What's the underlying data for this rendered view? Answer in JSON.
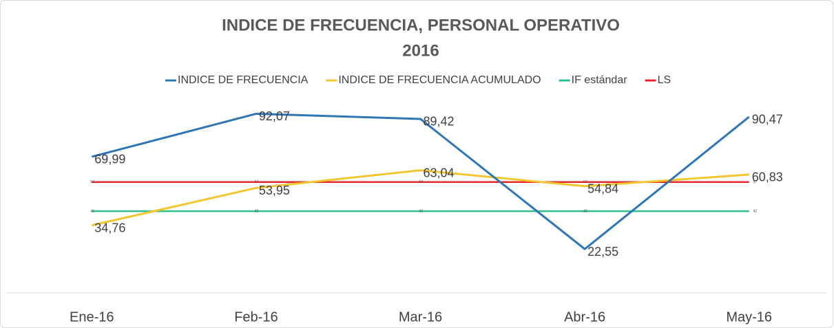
{
  "chart_data": {
    "type": "line",
    "title": "INDICE DE FRECUENCIA, PERSONAL OPERATIVO",
    "subtitle": "2016",
    "categories": [
      "Ene-16",
      "Feb-16",
      "Mar-16",
      "Abr-16",
      "May-16"
    ],
    "ylim": [
      0,
      100
    ],
    "legend": "top",
    "series": [
      {
        "name": "INDICE DE FRECUENCIA",
        "color": "#2e75b6",
        "values": [
          69.99,
          92.07,
          89.42,
          22.55,
          90.47
        ],
        "value_labels": [
          "69,99",
          "92,07",
          "89,42",
          "22,55",
          "90,47"
        ]
      },
      {
        "name": "INDICE DE FRECUENCIA ACUMULADO",
        "color": "#f2c62f",
        "values": [
          34.76,
          53.95,
          63.04,
          54.84,
          60.83
        ],
        "value_labels": [
          "34,76",
          "53,95",
          "63,04",
          "54,84",
          "60,83"
        ]
      },
      {
        "name": "IF estándar",
        "color": "#2ebf8c",
        "values": [
          42,
          42,
          42,
          42,
          42
        ]
      },
      {
        "name": "LS",
        "color": "#e8262c",
        "values": [
          57,
          57,
          57,
          57,
          57
        ]
      }
    ]
  }
}
